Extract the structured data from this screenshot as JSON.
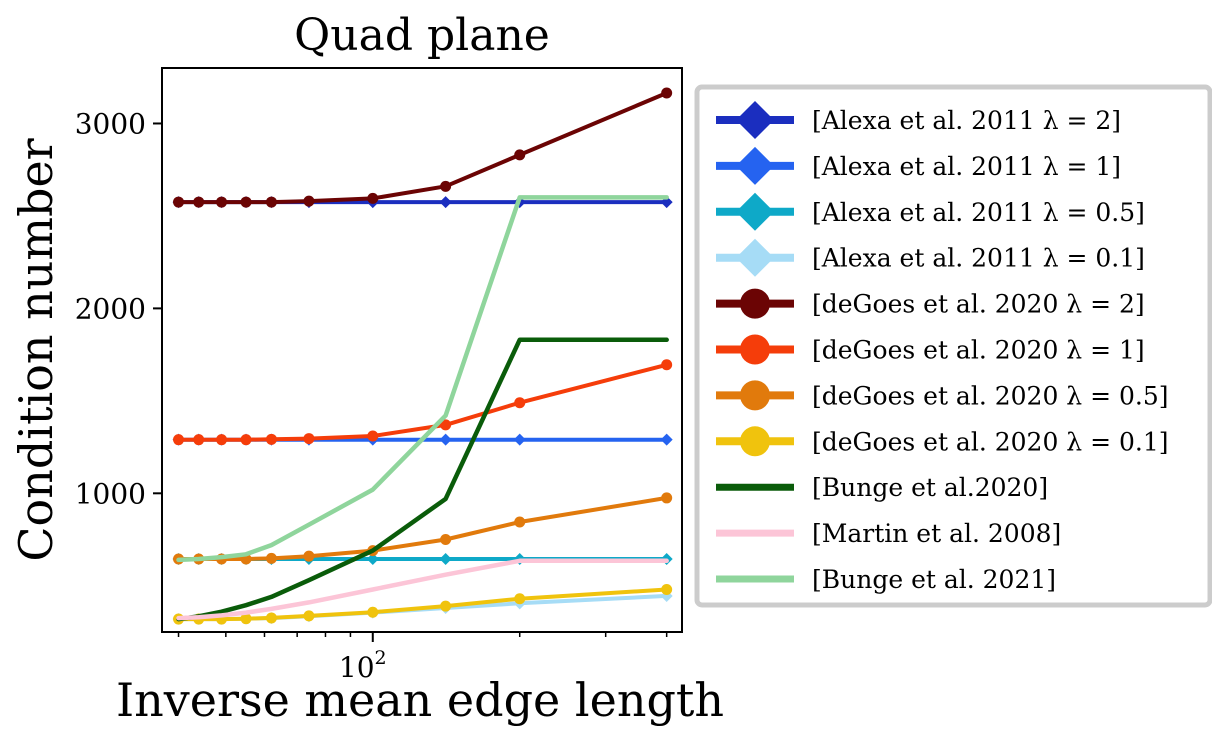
{
  "chart_data": {
    "type": "line",
    "title": "Quad plane",
    "xlabel": "Inverse mean edge length",
    "ylabel": "Condition number",
    "x_scale": "log",
    "x": [
      40,
      44,
      49,
      55,
      62,
      74,
      100,
      141,
      200,
      400
    ],
    "xlim": [
      37,
      430
    ],
    "ylim": [
      250,
      3300
    ],
    "xticks": [
      100
    ],
    "xtick_labels": [
      "10^2"
    ],
    "yticks": [
      1000,
      2000,
      3000
    ],
    "ytick_labels": [
      "1000",
      "2000",
      "3000"
    ],
    "grid": false,
    "legend_position": "outside-right",
    "series": [
      {
        "name": "[Alexa et al. 2011 λ = 2]",
        "color": "#1b2ebf",
        "marker": "diamond",
        "values": [
          2575,
          2575,
          2575,
          2575,
          2575,
          2575,
          2575,
          2575,
          2575,
          2575
        ]
      },
      {
        "name": "[Alexa et al. 2011 λ = 1]",
        "color": "#2563f0",
        "marker": "diamond",
        "values": [
          1290,
          1290,
          1290,
          1290,
          1290,
          1290,
          1290,
          1290,
          1290,
          1290
        ]
      },
      {
        "name": "[Alexa et al. 2011 λ = 0.5]",
        "color": "#0ea9c8",
        "marker": "diamond",
        "values": [
          645,
          645,
          645,
          645,
          645,
          645,
          645,
          645,
          645,
          645
        ]
      },
      {
        "name": "[Alexa et al. 2011 λ = 0.1]",
        "color": "#a6dcf6",
        "marker": "diamond",
        "values": [
          320,
          320,
          320,
          322,
          325,
          335,
          355,
          380,
          405,
          445
        ]
      },
      {
        "name": "[deGoes et al. 2020 λ = 2]",
        "color": "#6b0404",
        "marker": "circle",
        "values": [
          2575,
          2575,
          2575,
          2575,
          2575,
          2580,
          2595,
          2660,
          2830,
          3165
        ]
      },
      {
        "name": "[deGoes et al. 2020 λ = 1]",
        "color": "#f53d0a",
        "marker": "circle",
        "values": [
          1290,
          1290,
          1290,
          1290,
          1292,
          1296,
          1310,
          1370,
          1490,
          1695
        ]
      },
      {
        "name": "[deGoes et al. 2020 λ = 0.5]",
        "color": "#e17a0c",
        "marker": "circle",
        "values": [
          645,
          645,
          645,
          645,
          648,
          660,
          690,
          750,
          845,
          975
        ]
      },
      {
        "name": "[deGoes et al. 2020 λ = 0.1]",
        "color": "#f0c30d",
        "marker": "circle",
        "values": [
          320,
          320,
          320,
          322,
          326,
          337,
          357,
          390,
          430,
          480
        ]
      },
      {
        "name": "[Bunge et al.2020]",
        "color": "#0a5c0a",
        "marker": "none",
        "values": [
          320,
          335,
          360,
          395,
          440,
          530,
          690,
          970,
          1830,
          1830
        ]
      },
      {
        "name": "[Martin et al. 2008]",
        "color": "#fcc5d7",
        "marker": "none",
        "values": [
          325,
          330,
          340,
          355,
          375,
          410,
          480,
          560,
          635,
          635
        ]
      },
      {
        "name": "[Bunge et al. 2021]",
        "color": "#8fd59c",
        "marker": "none",
        "values": [
          640,
          645,
          655,
          670,
          720,
          830,
          1020,
          1420,
          2600,
          2600
        ]
      }
    ]
  }
}
